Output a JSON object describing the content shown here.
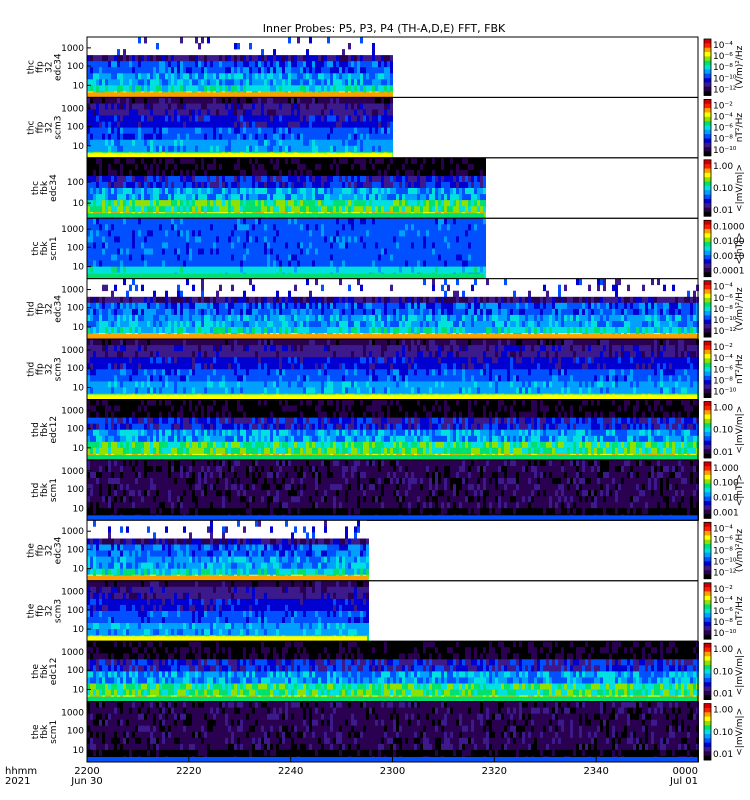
{
  "title": "Inner Probes: P5, P3, P4 (TH-A,D,E) FFT, FBK",
  "time_axis": {
    "corner_label": [
      "hhmm",
      "2021"
    ],
    "ticks": [
      {
        "label": "2200",
        "sub": "Jun 30",
        "minutes": 0
      },
      {
        "label": "2220",
        "sub": "",
        "minutes": 20
      },
      {
        "label": "2240",
        "sub": "",
        "minutes": 40
      },
      {
        "label": "2300",
        "sub": "",
        "minutes": 60
      },
      {
        "label": "2320",
        "sub": "",
        "minutes": 80
      },
      {
        "label": "2340",
        "sub": "",
        "minutes": 100
      },
      {
        "label": "0000",
        "sub": "Jul 01",
        "minutes": 120
      }
    ]
  },
  "colormap": [
    "#000000",
    "#2a0050",
    "#3c1a8c",
    "#0000d0",
    "#0050ff",
    "#00a0ff",
    "#00e0e0",
    "#00e070",
    "#90e000",
    "#ffff00",
    "#ffa000",
    "#ff2000",
    "#d00000"
  ],
  "chart_data": {
    "type": "heatmap",
    "x_range_minutes": [
      0,
      120
    ],
    "panels": [
      {
        "ylabel": [
          "thc",
          "ffp",
          "32",
          "edc34"
        ],
        "yticks": [
          "1000",
          "100",
          "10"
        ],
        "zlabel": "(V/m)²/Hz",
        "zticks": [
          "10⁻⁴",
          "10⁻⁶",
          "10⁻⁸",
          "10⁻¹⁰",
          "10⁻¹²"
        ],
        "data_end_minutes": 60,
        "style": "edc"
      },
      {
        "ylabel": [
          "thc",
          "ffp",
          "32",
          "scm3"
        ],
        "yticks": [
          "1000",
          "100",
          "10"
        ],
        "zlabel": "nT²/Hz",
        "zticks": [
          "10⁻²",
          "10⁻⁴",
          "10⁻⁶",
          "10⁻⁸",
          "10⁻¹⁰"
        ],
        "data_end_minutes": 60,
        "style": "scm"
      },
      {
        "ylabel": [
          "thc",
          "fbk",
          "edc34"
        ],
        "yticks": [
          "100",
          "10"
        ],
        "zlabel": "<|mV/m|>",
        "zticks": [
          "1.00",
          "0.10",
          "0.01"
        ],
        "data_end_minutes": 78,
        "style": "fbke"
      },
      {
        "ylabel": [
          "thc",
          "fbk",
          "scm1"
        ],
        "yticks": [
          "1000",
          "100",
          "10"
        ],
        "zlabel": "<|nT|>",
        "zticks": [
          "0.1000",
          "0.0100",
          "0.0010",
          "0.0001"
        ],
        "data_end_minutes": 78,
        "style": "fbkscmblue"
      },
      {
        "ylabel": [
          "thd",
          "ffp",
          "32",
          "edc34"
        ],
        "yticks": [
          "1000",
          "100",
          "10"
        ],
        "zlabel": "(V/m)²/Hz",
        "zticks": [
          "10⁻⁴",
          "10⁻⁶",
          "10⁻⁸",
          "10⁻¹⁰",
          "10⁻¹²"
        ],
        "data_end_minutes": 120,
        "style": "edc"
      },
      {
        "ylabel": [
          "thd",
          "ffp",
          "32",
          "scm3"
        ],
        "yticks": [
          "1000",
          "100",
          "10"
        ],
        "zlabel": "nT²/Hz",
        "zticks": [
          "10⁻²",
          "10⁻⁴",
          "10⁻⁶",
          "10⁻⁸",
          "10⁻¹⁰"
        ],
        "data_end_minutes": 120,
        "style": "scm"
      },
      {
        "ylabel": [
          "thd",
          "fbk",
          "edc12"
        ],
        "yticks": [
          "1000",
          "100",
          "10"
        ],
        "zlabel": "<|mV/m|>",
        "zticks": [
          "1.00",
          "0.10",
          "0.01"
        ],
        "data_end_minutes": 120,
        "style": "fbke"
      },
      {
        "ylabel": [
          "thd",
          "fbk",
          "scm1"
        ],
        "yticks": [
          "1000",
          "100",
          "10"
        ],
        "zlabel": "<|nT|>",
        "zticks": [
          "1.000",
          "0.100",
          "0.010",
          "0.001"
        ],
        "data_end_minutes": 120,
        "style": "fbkscmdark"
      },
      {
        "ylabel": [
          "the",
          "ffp",
          "32",
          "edc34"
        ],
        "yticks": [
          "1000",
          "100",
          "10"
        ],
        "zlabel": "(V/m)²/Hz",
        "zticks": [
          "10⁻⁴",
          "10⁻⁶",
          "10⁻⁸",
          "10⁻¹⁰",
          "10⁻¹²"
        ],
        "data_end_minutes": 55,
        "style": "edc"
      },
      {
        "ylabel": [
          "the",
          "ffp",
          "32",
          "scm3"
        ],
        "yticks": [
          "1000",
          "100",
          "10"
        ],
        "zlabel": "nT²/Hz",
        "zticks": [
          "10⁻²",
          "10⁻⁴",
          "10⁻⁶",
          "10⁻⁸",
          "10⁻¹⁰"
        ],
        "data_end_minutes": 55,
        "style": "scm"
      },
      {
        "ylabel": [
          "the",
          "fbk",
          "edc12"
        ],
        "yticks": [
          "1000",
          "100",
          "10"
        ],
        "zlabel": "<|mV/m|>",
        "zticks": [
          "1.00",
          "0.10",
          "0.01"
        ],
        "data_end_minutes": 120,
        "style": "fbke"
      },
      {
        "ylabel": [
          "the",
          "fbk",
          "scm1"
        ],
        "yticks": [
          "1000",
          "100",
          "10"
        ],
        "zlabel": "<|mV/m|>",
        "zticks": [
          "1.00",
          "0.10",
          "0.01"
        ],
        "data_end_minutes": 120,
        "style": "fbkscmdark"
      }
    ]
  }
}
